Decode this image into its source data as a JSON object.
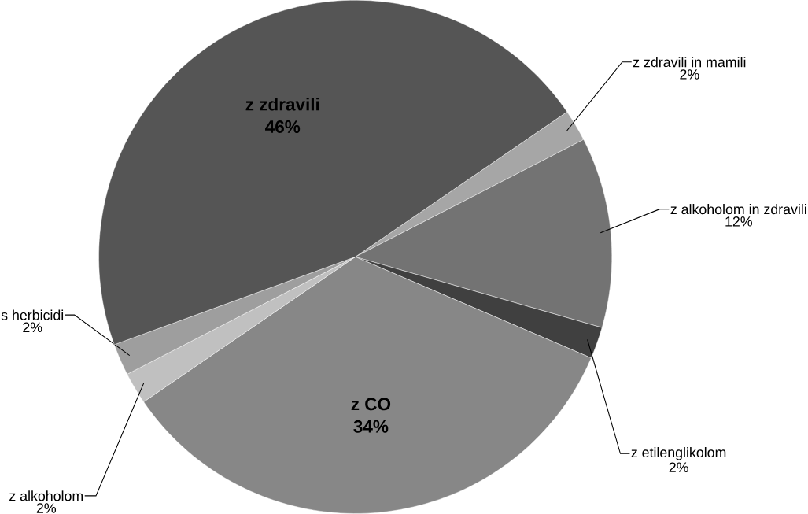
{
  "chart_data": {
    "type": "pie",
    "categories": [
      "z zdravili in mamili",
      "z alkoholom in zdravili",
      "z etilenglikolom",
      "z CO",
      "z alkoholom",
      "s herbicidi",
      "z zdravili"
    ],
    "values": [
      2,
      12,
      2,
      34,
      2,
      2,
      46
    ],
    "value_labels": [
      "2%",
      "12%",
      "2%",
      "34%",
      "2%",
      "2%",
      "46%"
    ],
    "colors": [
      "#a6a6a6",
      "#737373",
      "#404040",
      "#878787",
      "#c0c0c0",
      "#9e9e9e",
      "#555555"
    ]
  }
}
